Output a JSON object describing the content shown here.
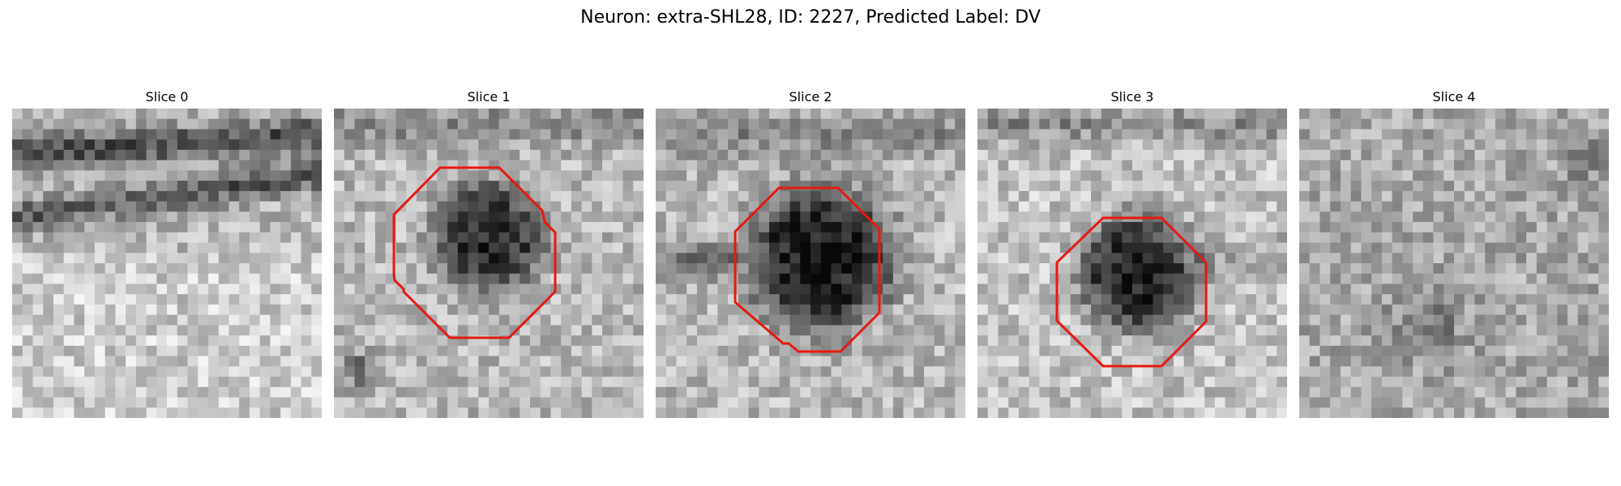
{
  "figure": {
    "title": "Neuron: extra-SHL28, ID: 2227, Predicted Label: DV"
  },
  "slices": [
    {
      "title": "Slice 0",
      "has_contour": false,
      "contour_color": "#e8190f"
    },
    {
      "title": "Slice 1",
      "has_contour": true,
      "contour_color": "#e8190f"
    },
    {
      "title": "Slice 2",
      "has_contour": true,
      "contour_color": "#e8190f"
    },
    {
      "title": "Slice 3",
      "has_contour": true,
      "contour_color": "#e8190f"
    },
    {
      "title": "Slice 4",
      "has_contour": false,
      "contour_color": "#e8190f"
    }
  ],
  "colors": {
    "colormap": "grayscale",
    "contour": "#e8190f"
  }
}
